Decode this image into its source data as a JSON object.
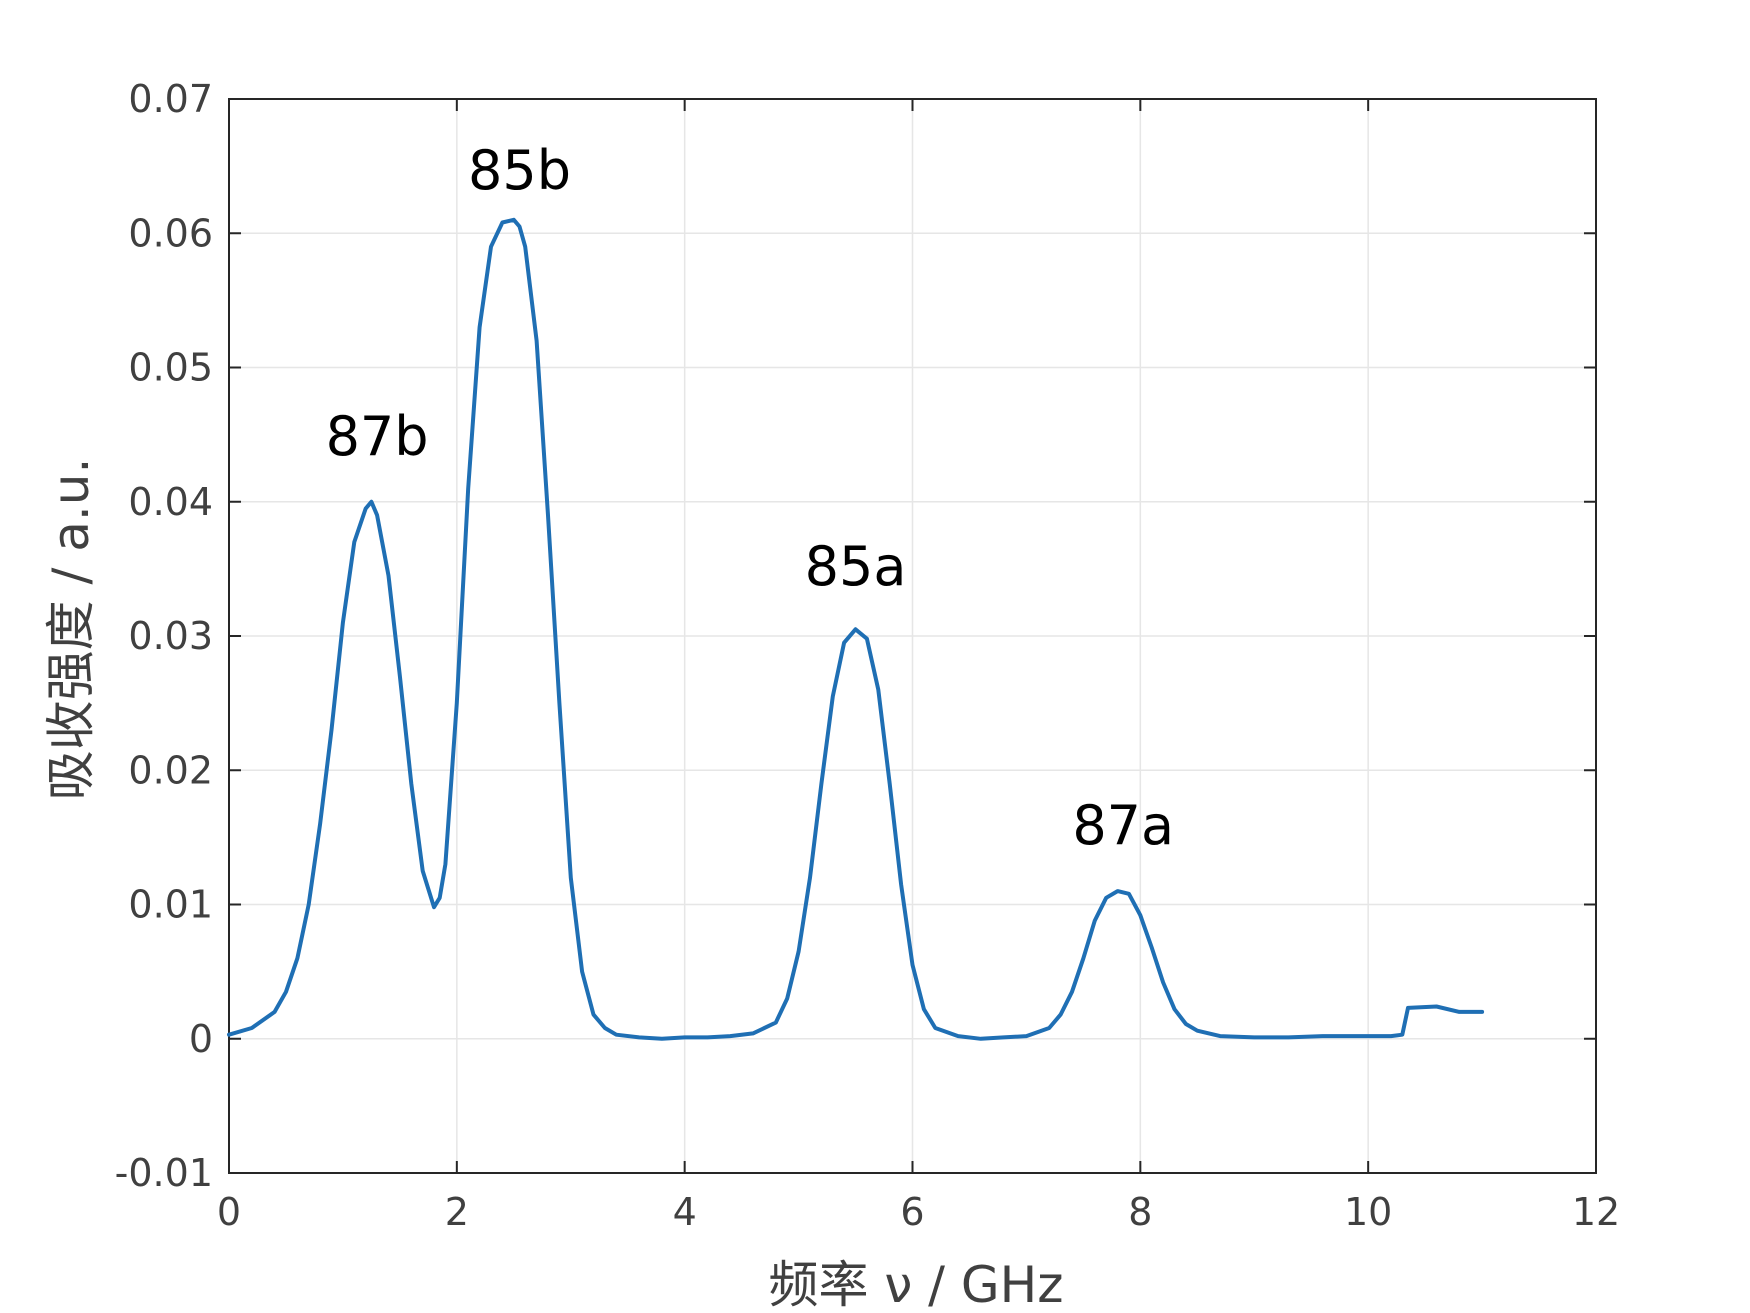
{
  "chart_data": {
    "type": "line",
    "xlabel": "频率 ν / GHz",
    "ylabel": "吸收强度 / a.u.",
    "xlim": [
      0,
      12
    ],
    "ylim": [
      -0.01,
      0.07
    ],
    "xticks": [
      0,
      2,
      4,
      6,
      8,
      10,
      12
    ],
    "yticks": [
      -0.01,
      0,
      0.01,
      0.02,
      0.03,
      0.04,
      0.05,
      0.06,
      0.07
    ],
    "xtick_labels": [
      "0",
      "2",
      "4",
      "6",
      "8",
      "10",
      "12"
    ],
    "ytick_labels": [
      "-0.01",
      "0",
      "0.01",
      "0.02",
      "0.03",
      "0.04",
      "0.05",
      "0.06",
      "0.07"
    ],
    "grid": true,
    "line_color": "#1f6fb4",
    "series": [
      {
        "x": [
          0.0,
          0.2,
          0.4,
          0.5,
          0.6,
          0.7,
          0.8,
          0.9,
          1.0,
          1.1,
          1.2,
          1.25,
          1.3,
          1.4,
          1.5,
          1.6,
          1.7,
          1.8,
          1.85,
          1.9,
          2.0,
          2.1,
          2.2,
          2.3,
          2.4,
          2.5,
          2.55,
          2.6,
          2.7,
          2.8,
          2.9,
          3.0,
          3.1,
          3.2,
          3.3,
          3.4,
          3.6,
          3.8,
          4.0,
          4.2,
          4.4,
          4.6,
          4.8,
          4.9,
          5.0,
          5.1,
          5.2,
          5.3,
          5.4,
          5.5,
          5.6,
          5.7,
          5.8,
          5.9,
          6.0,
          6.1,
          6.2,
          6.4,
          6.6,
          6.8,
          7.0,
          7.2,
          7.3,
          7.4,
          7.5,
          7.6,
          7.7,
          7.8,
          7.9,
          8.0,
          8.1,
          8.2,
          8.3,
          8.4,
          8.5,
          8.7,
          9.0,
          9.3,
          9.6,
          9.9,
          10.2,
          10.3,
          10.35,
          10.6,
          10.8,
          11.0
        ],
        "y": [
          0.0003,
          0.0008,
          0.002,
          0.0035,
          0.006,
          0.01,
          0.016,
          0.023,
          0.031,
          0.037,
          0.0395,
          0.04,
          0.039,
          0.0345,
          0.027,
          0.019,
          0.0125,
          0.0098,
          0.0105,
          0.013,
          0.025,
          0.041,
          0.053,
          0.059,
          0.0608,
          0.061,
          0.0605,
          0.059,
          0.052,
          0.039,
          0.025,
          0.012,
          0.005,
          0.0018,
          0.0008,
          0.0003,
          0.0001,
          0.0,
          0.0001,
          0.0001,
          0.0002,
          0.0004,
          0.0012,
          0.003,
          0.0065,
          0.012,
          0.019,
          0.0255,
          0.0295,
          0.0305,
          0.0298,
          0.026,
          0.019,
          0.0115,
          0.0055,
          0.0022,
          0.0008,
          0.0002,
          0.0,
          0.0001,
          0.0002,
          0.0008,
          0.0018,
          0.0035,
          0.006,
          0.0088,
          0.0105,
          0.011,
          0.0108,
          0.0092,
          0.0068,
          0.0042,
          0.0022,
          0.0011,
          0.0006,
          0.0002,
          0.0001,
          0.0001,
          0.0002,
          0.0002,
          0.0002,
          0.0003,
          0.0023,
          0.0024,
          0.002,
          0.002
        ]
      }
    ],
    "annotations": [
      {
        "text": "87b",
        "x": 1.3,
        "y": 0.0435
      },
      {
        "text": "85b",
        "x": 2.55,
        "y": 0.0633
      },
      {
        "text": "85a",
        "x": 5.5,
        "y": 0.0338
      },
      {
        "text": "87a",
        "x": 7.85,
        "y": 0.0145
      }
    ]
  }
}
